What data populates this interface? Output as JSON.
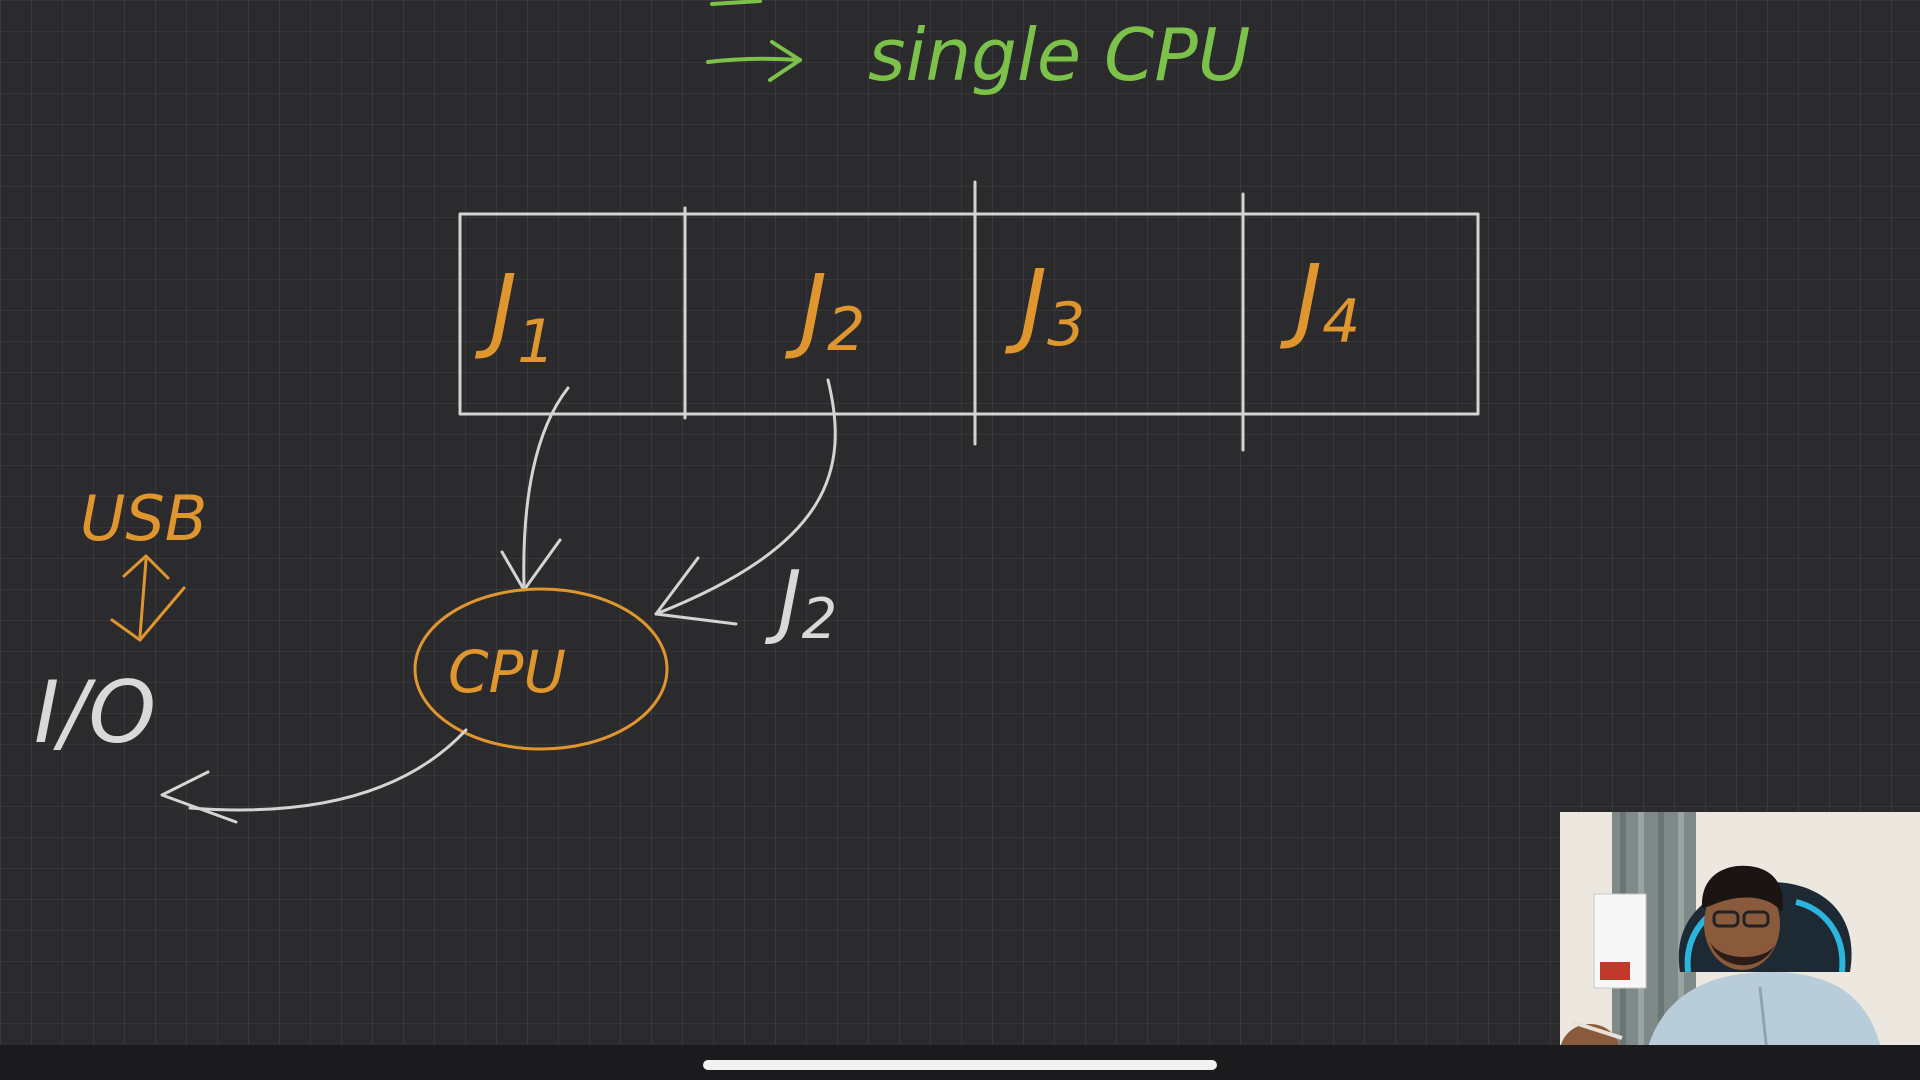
{
  "heading": {
    "arrow_text": "single CPU"
  },
  "job_queue": {
    "jobs": [
      {
        "base": "J",
        "sub": "1"
      },
      {
        "base": "J",
        "sub": "2"
      },
      {
        "base": "J",
        "sub": "3"
      },
      {
        "base": "J",
        "sub": "4"
      }
    ]
  },
  "cpu": {
    "label": "CPU"
  },
  "moving_job": {
    "base": "J",
    "sub": "2"
  },
  "io": {
    "label": "I/O",
    "device": "USB"
  },
  "colors": {
    "background": "#2b2a2d",
    "handwriting_orange": "#e0962f",
    "handwriting_green": "#7cc24a",
    "handwriting_white": "#d4d4d4"
  }
}
